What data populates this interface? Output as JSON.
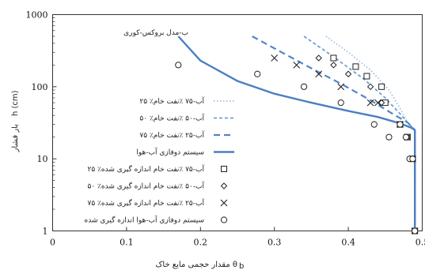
{
  "chart_data": {
    "type": "scatter",
    "title": "ب-مدل بروکس-کوری",
    "xlabel": "مقدار حجمی مایع خاک θ",
    "xlabel_symbol": "θ",
    "xlabel_sub": "b",
    "ylabel_unit": "h (cm)",
    "ylabel_word": "بار فشار",
    "xlim": [
      0,
      0.5
    ],
    "ylim": [
      1,
      1000
    ],
    "yscale": "log",
    "x_ticks": [
      "0",
      "0.1",
      "0.2",
      "0.3",
      "0.4",
      "0.5"
    ],
    "y_ticks": [
      "1",
      "10",
      "100",
      "1000"
    ],
    "series": [
      {
        "name": "۲۵ ٪آب-۷۵ ٪نفت خام",
        "kind": "line",
        "color": "#9fbfe6",
        "dash": "1.5,2.5",
        "width": 1.8,
        "x": [
          0.37,
          0.4,
          0.43,
          0.455,
          0.47,
          0.48,
          0.487,
          0.49,
          0.49
        ],
        "y": [
          500,
          300,
          170,
          90,
          50,
          32,
          27,
          25,
          1
        ]
      },
      {
        "name": "۵۰ ٪آب-۵۰ ٪نفت خام",
        "kind": "line",
        "color": "#6e9fd6",
        "dash": "4,3",
        "width": 1.8,
        "x": [
          0.34,
          0.38,
          0.42,
          0.45,
          0.47,
          0.48,
          0.487,
          0.49,
          0.49
        ],
        "y": [
          500,
          260,
          130,
          70,
          42,
          32,
          27,
          25,
          1
        ]
      },
      {
        "name": "۷۵ ٪آب-۲۵ ٪نفت خام",
        "kind": "line",
        "color": "#4f86c6",
        "dash": "8,5",
        "width": 2.2,
        "x": [
          0.27,
          0.31,
          0.35,
          0.39,
          0.43,
          0.46,
          0.48,
          0.487,
          0.49,
          0.49
        ],
        "y": [
          500,
          300,
          180,
          110,
          65,
          42,
          32,
          27,
          25,
          1
        ]
      },
      {
        "name": "سیستم دوفازی آب-هوا",
        "kind": "line",
        "color": "#4a7fc1",
        "dash": "",
        "width": 2.4,
        "x": [
          0.17,
          0.2,
          0.25,
          0.3,
          0.35,
          0.4,
          0.44,
          0.47,
          0.485,
          0.49,
          0.49
        ],
        "y": [
          500,
          230,
          120,
          80,
          60,
          46,
          38,
          31,
          27,
          25,
          1
        ]
      },
      {
        "name": "۲۵ ٪آب-۷۵ ٪نفت خام اندازه گیری شده",
        "kind": "marker",
        "marker": "square",
        "x": [
          0.38,
          0.41,
          0.425,
          0.445,
          0.45,
          0.47,
          0.48,
          0.487,
          0.49
        ],
        "y": [
          250,
          190,
          140,
          100,
          60,
          30,
          20,
          10,
          1
        ]
      },
      {
        "name": "۵۰ ٪آب-۵۰ ٪نفت خام اندازه گیری شده",
        "kind": "marker",
        "marker": "diamond",
        "x": [
          0.36,
          0.38,
          0.4,
          0.43,
          0.445,
          0.47,
          0.48,
          0.487,
          0.49
        ],
        "y": [
          250,
          200,
          150,
          100,
          60,
          30,
          20,
          10,
          1
        ]
      },
      {
        "name": "۷۵ ٪آب-۲۵ ٪نفت خام اندازه گیری شده",
        "kind": "marker",
        "marker": "cross",
        "x": [
          0.3,
          0.33,
          0.36,
          0.39,
          0.43,
          0.44,
          0.47,
          0.48,
          0.487,
          0.49
        ],
        "y": [
          250,
          200,
          150,
          100,
          60,
          60,
          30,
          20,
          10,
          1
        ]
      },
      {
        "name": "سیستم دوفازی آب-هوا اندازه گیری شده",
        "kind": "marker",
        "marker": "circle",
        "x": [
          0.17,
          0.277,
          0.34,
          0.39,
          0.435,
          0.455,
          0.47,
          0.478,
          0.483,
          0.487,
          0.49
        ],
        "y": [
          200,
          150,
          100,
          60,
          30,
          20,
          30,
          20,
          10,
          10,
          1
        ]
      }
    ]
  }
}
